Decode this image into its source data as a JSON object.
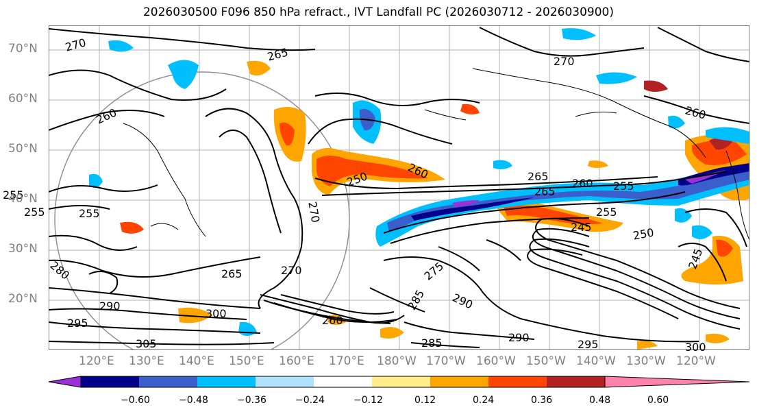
{
  "title": "2026030500 F096 850 hPa refract., IVT Landfall PC (2026030712 - 2026030900)",
  "lat_labels": [
    "70°N",
    "60°N",
    "50°N",
    "40°N",
    "30°N",
    "20°N"
  ],
  "lon_labels": [
    "120°E",
    "130°E",
    "140°E",
    "150°E",
    "160°E",
    "170°E",
    "180°W",
    "170°W",
    "160°W",
    "150°W",
    "140°W",
    "130°W",
    "120°W"
  ],
  "contour_labels": [
    "270",
    "265",
    "260",
    "255",
    "255",
    "255",
    "250",
    "260",
    "270",
    "265",
    "265",
    "260",
    "255",
    "255",
    "245",
    "250",
    "245",
    "260",
    "280",
    "290",
    "295",
    "305",
    "300",
    "285",
    "275",
    "290",
    "285",
    "290",
    "295",
    "300",
    "265",
    "270",
    "260",
    "270"
  ],
  "colorbar": {
    "ticks": [
      "−0.60",
      "−0.48",
      "−0.36",
      "−0.24",
      "−0.12",
      "0.12",
      "0.24",
      "0.36",
      "0.48",
      "0.60"
    ],
    "colors": [
      "#9b30d9",
      "#00008b",
      "#3a5fcd",
      "#00bfff",
      "#b0e2ff",
      "#ffffff",
      "#ffec8b",
      "#ffa500",
      "#ff4500",
      "#b22222",
      "#ff82ab"
    ]
  }
}
